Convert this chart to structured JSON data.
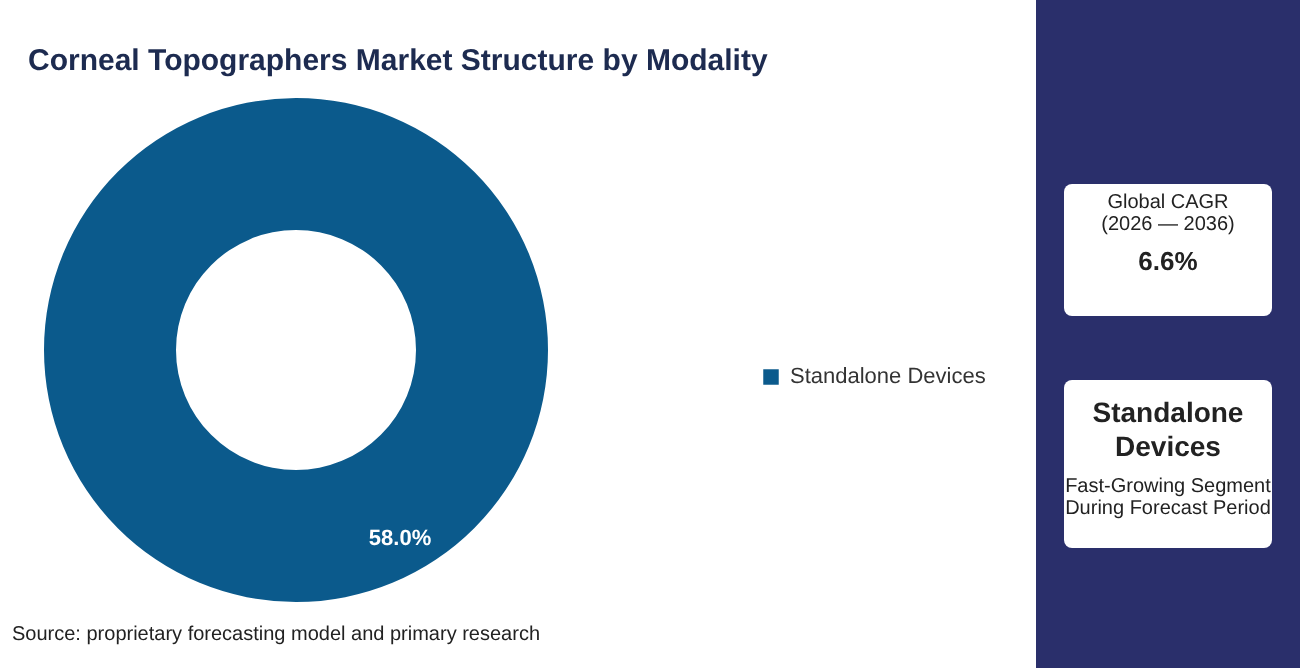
{
  "chart_data": {
    "type": "donut",
    "title": "Corneal Topographers Market Structure by Modality",
    "categories": [
      "Standalone Devices"
    ],
    "values": [
      58.0
    ],
    "colors": [
      "#0b5a8c"
    ],
    "value_labels": [
      "58.0%"
    ],
    "legend": "right",
    "annotations": [
      "Source: proprietary forecasting model and primary research",
      "Global CAGR",
      "(2026 — 2036)",
      "6.6%",
      "Standalone Devices",
      "Fast-Growing Segment During Forecast Period"
    ]
  }
}
